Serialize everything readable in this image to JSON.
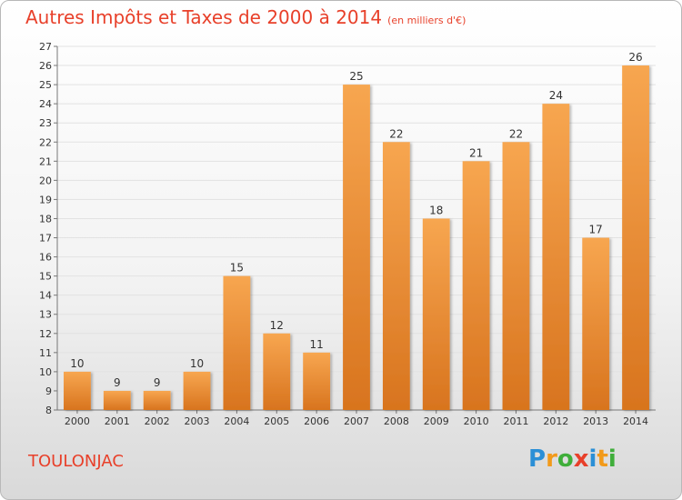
{
  "header": {
    "title": "Autres Impôts et Taxes de 2000 à 2014",
    "subtitle": "(en milliers d'€)"
  },
  "footer": {
    "commune": "TOULONJAC",
    "brand": "Proxiti",
    "brand_letters": [
      {
        "ch": "P",
        "color": "#2b8fd6"
      },
      {
        "ch": "r",
        "color": "#f29a1a"
      },
      {
        "ch": "o",
        "color": "#3fae3a"
      },
      {
        "ch": "x",
        "color": "#e8402a"
      },
      {
        "ch": "i",
        "color": "#2b8fd6"
      },
      {
        "ch": "t",
        "color": "#f29a1a"
      },
      {
        "ch": "i",
        "color": "#3fae3a"
      }
    ]
  },
  "colors": {
    "bar_light": "#f7a650",
    "bar_dark": "#d8741e",
    "title": "#e8402a",
    "grid": "#e2e2e2",
    "axis": "#777777"
  },
  "chart_data": {
    "type": "bar",
    "title": "Autres Impôts et Taxes de 2000 à 2014",
    "subtitle": "(en milliers d'€)",
    "xlabel": "",
    "ylabel": "",
    "categories": [
      "2000",
      "2001",
      "2002",
      "2003",
      "2004",
      "2005",
      "2006",
      "2007",
      "2008",
      "2009",
      "2010",
      "2011",
      "2012",
      "2013",
      "2014"
    ],
    "values": [
      10,
      9,
      9,
      10,
      15,
      12,
      11,
      25,
      22,
      18,
      21,
      22,
      24,
      17,
      26
    ],
    "data_labels": [
      "10",
      "9",
      "9",
      "10",
      "15",
      "12",
      "11",
      "25",
      "22",
      "18",
      "21",
      "22",
      "24",
      "17",
      "26"
    ],
    "ylim": [
      8,
      27
    ],
    "yticks": [
      8,
      9,
      10,
      11,
      12,
      13,
      14,
      15,
      16,
      17,
      18,
      19,
      20,
      21,
      22,
      23,
      24,
      25,
      26,
      27
    ],
    "grid": true,
    "legend": "none"
  }
}
